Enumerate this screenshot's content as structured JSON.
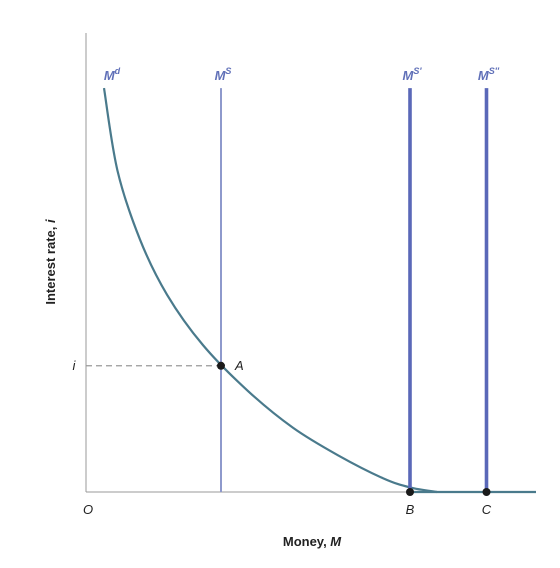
{
  "chart_data": {
    "type": "line",
    "title": "",
    "xlabel": {
      "text": "Money, ",
      "var": "M"
    },
    "ylabel": {
      "text": "Interest rate, ",
      "var": "i"
    },
    "origin_label": "O",
    "xlim": [
      0,
      100
    ],
    "ylim": [
      0,
      100
    ],
    "series": [
      {
        "kind": "curve",
        "base": "M",
        "sup": "d",
        "x": [
          4,
          7,
          12,
          18,
          26,
          36,
          46,
          56,
          66,
          72,
          78
        ],
        "y": [
          88,
          70,
          55,
          43,
          32,
          22,
          14,
          8,
          3,
          1,
          0
        ]
      },
      {
        "kind": "vertical",
        "base": "M",
        "sup": "S",
        "x": 30,
        "y": [
          0,
          88
        ]
      },
      {
        "kind": "vertical",
        "base": "M",
        "sup": "S′",
        "x": 72,
        "y": [
          0,
          88
        ]
      },
      {
        "kind": "vertical",
        "base": "M",
        "sup": "S″",
        "x": 89,
        "y": [
          0,
          88
        ]
      },
      {
        "kind": "floor",
        "x": [
          72,
          100
        ],
        "y": [
          0,
          0
        ]
      }
    ],
    "points": [
      {
        "label": "A",
        "x": 30,
        "y": 27.5,
        "placement": "right"
      },
      {
        "label": "B",
        "x": 72,
        "y": 0,
        "placement": "below"
      },
      {
        "label": "C",
        "x": 89,
        "y": 0,
        "placement": "below"
      }
    ],
    "guide": {
      "label": "i",
      "y": 27.5,
      "to_x": 30
    },
    "colors": {
      "demand": "#4a7a8c",
      "supply": "#8e99cc",
      "supply_shifted": "#5a68b8",
      "label": "#6070b8",
      "axis": "#999999",
      "guide": "#999999",
      "point": "#1a1a1a"
    }
  }
}
